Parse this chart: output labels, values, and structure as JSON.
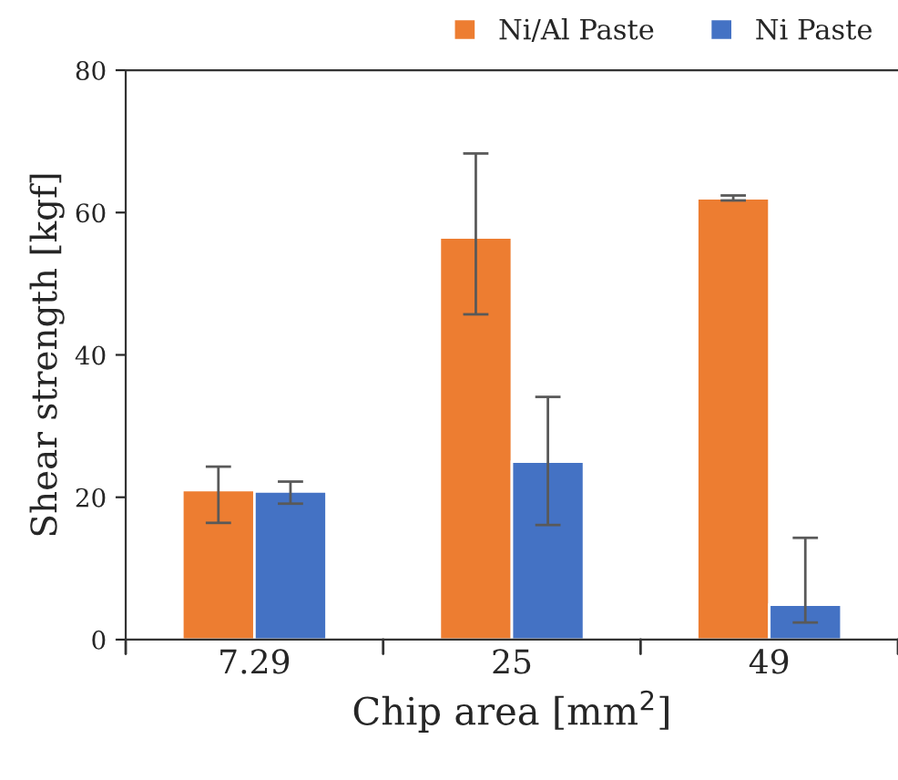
{
  "chart_data": {
    "type": "bar",
    "xlabel": "Chip area [mm$^{2}$]",
    "ylabel": "Shear strength [kgf]",
    "categories": [
      "7.29",
      "25",
      "49"
    ],
    "series": [
      {
        "name": "Ni/Al Paste",
        "color": "#ed7d31",
        "values": [
          21.0,
          56.5,
          62.0
        ],
        "errors": [
          [
            16.4,
            24.3
          ],
          [
            45.7,
            68.3
          ],
          [
            61.7,
            62.4
          ]
        ]
      },
      {
        "name": "Ni Paste",
        "color": "#4472c4",
        "values": [
          20.8,
          25.0,
          4.9
        ],
        "errors": [
          [
            19.1,
            22.2
          ],
          [
            16.1,
            34.1
          ],
          [
            2.4,
            14.3
          ]
        ]
      }
    ],
    "ylim": [
      0,
      80
    ],
    "yticks": [
      0,
      20,
      40,
      60,
      80
    ],
    "grid": false,
    "legend": "top right"
  }
}
